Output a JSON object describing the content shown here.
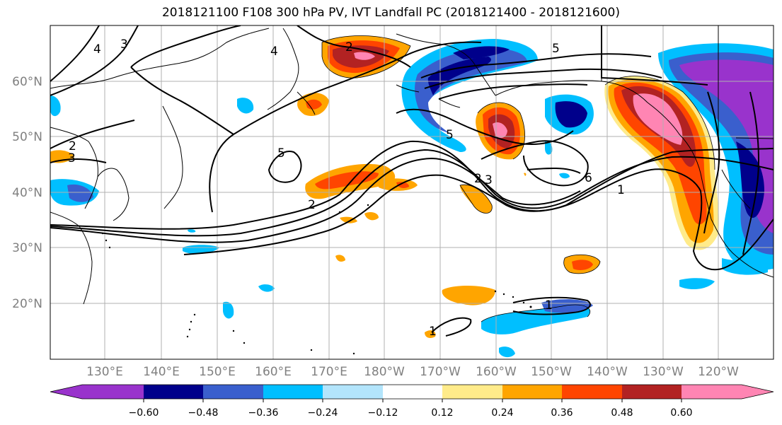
{
  "title": "2018121100 F108 300 hPa PV, IVT Landfall PC (2018121400 - 2018121600)",
  "lat_labels": [
    "60°N",
    "50°N",
    "40°N",
    "30°N",
    "20°N"
  ],
  "lon_labels": [
    "130°E",
    "140°E",
    "150°E",
    "160°E",
    "170°E",
    "180°W",
    "170°W",
    "160°W",
    "150°W",
    "140°W",
    "130°W",
    "120°W"
  ],
  "contour_labels": [
    "5",
    "4",
    "3",
    "2",
    "2",
    "3",
    "2",
    "5",
    "2",
    "4",
    "3",
    "5",
    "6",
    "1",
    "1",
    "1"
  ],
  "colorbar": {
    "colors": [
      "#9933cc",
      "#00008b",
      "#3a5fcd",
      "#00bfff",
      "#b3e5fc",
      "#ffffff",
      "#ffeb8a",
      "#ffa500",
      "#ff4500",
      "#b22222",
      "#ff85b3"
    ],
    "tick_labels": [
      "−0.60",
      "−0.48",
      "−0.36",
      "−0.24",
      "−0.12",
      "0.12",
      "0.24",
      "0.36",
      "0.48",
      "0.60"
    ]
  }
}
